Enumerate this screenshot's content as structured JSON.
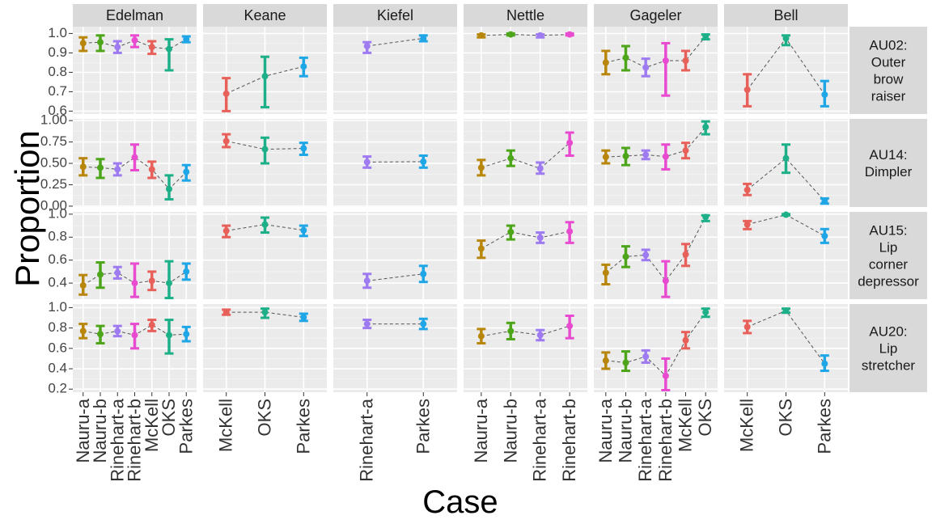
{
  "chart_data": {
    "type": "errorbar",
    "title": "",
    "xlabel": "Case",
    "ylabel": "Proportion",
    "columns": [
      {
        "name": "Edelman",
        "cases": [
          "Nauru-a",
          "Nauru-b",
          "Rinehart-a",
          "Rinehart-b",
          "McKell",
          "OKS",
          "Parkes"
        ]
      },
      {
        "name": "Keane",
        "cases": [
          "McKell",
          "OKS",
          "Parkes"
        ]
      },
      {
        "name": "Kiefel",
        "cases": [
          "Rinehart-a",
          "Parkes"
        ]
      },
      {
        "name": "Nettle",
        "cases": [
          "Nauru-a",
          "Nauru-b",
          "Rinehart-a",
          "Rinehart-b"
        ]
      },
      {
        "name": "Gageler",
        "cases": [
          "Nauru-a",
          "Nauru-b",
          "Rinehart-a",
          "Rinehart-b",
          "McKell",
          "OKS"
        ]
      },
      {
        "name": "Bell",
        "cases": [
          "McKell",
          "OKS",
          "Parkes"
        ]
      }
    ],
    "case_colors": {
      "Nauru-a": "#B8860B",
      "Nauru-b": "#4DA51A",
      "Rinehart-a": "#9E7BF0",
      "Rinehart-b": "#E84AD0",
      "McKell": "#E8605A",
      "OKS": "#1DB088",
      "Parkes": "#1EA6E6"
    },
    "rows": [
      {
        "label_lines": [
          "AU02:",
          "Outer",
          "brow",
          "raiser"
        ],
        "ylim": [
          0.585,
          1.035
        ],
        "yticks": [
          0.6,
          0.7,
          0.8,
          0.9,
          1.0
        ],
        "tick_labels": [
          "0.6",
          "0.7",
          "0.8",
          "0.9",
          "1.0"
        ],
        "panels": [
          [
            [
              0.95,
              0.91,
              0.98
            ],
            [
              0.955,
              0.91,
              0.99
            ],
            [
              0.93,
              0.9,
              0.96
            ],
            [
              0.965,
              0.93,
              0.99
            ],
            [
              0.93,
              0.895,
              0.96
            ],
            [
              0.92,
              0.81,
              0.97
            ],
            [
              0.97,
              0.955,
              0.985
            ]
          ],
          [
            [
              0.69,
              0.6,
              0.77
            ],
            [
              0.78,
              0.62,
              0.88
            ],
            [
              0.83,
              0.78,
              0.875
            ]
          ],
          [
            [
              0.935,
              0.9,
              0.955
            ],
            [
              0.975,
              0.96,
              0.99
            ]
          ],
          [
            [
              0.99,
              0.98,
              0.995
            ],
            [
              0.995,
              0.99,
              1.0
            ],
            [
              0.99,
              0.98,
              0.995
            ],
            [
              0.995,
              0.99,
              1.0
            ]
          ],
          [
            [
              0.85,
              0.79,
              0.91
            ],
            [
              0.875,
              0.81,
              0.935
            ],
            [
              0.825,
              0.78,
              0.87
            ],
            [
              0.86,
              0.68,
              0.95
            ],
            [
              0.86,
              0.81,
              0.91
            ],
            [
              0.985,
              0.97,
              0.995
            ]
          ],
          [
            [
              0.71,
              0.625,
              0.79
            ],
            [
              0.975,
              0.94,
              0.99
            ],
            [
              0.685,
              0.625,
              0.755
            ]
          ]
        ]
      },
      {
        "label_lines": [
          "AU14:",
          "Dimpler"
        ],
        "ylim": [
          -0.01,
          1.02
        ],
        "yticks": [
          0.0,
          0.25,
          0.5,
          0.75,
          1.0
        ],
        "tick_labels": [
          "0.00",
          "0.25",
          "0.50",
          "0.75",
          "1.00"
        ],
        "panels": [
          [
            [
              0.46,
              0.36,
              0.56
            ],
            [
              0.45,
              0.33,
              0.55
            ],
            [
              0.43,
              0.36,
              0.5
            ],
            [
              0.57,
              0.42,
              0.72
            ],
            [
              0.43,
              0.33,
              0.52
            ],
            [
              0.2,
              0.08,
              0.36
            ],
            [
              0.4,
              0.3,
              0.48
            ]
          ],
          [
            [
              0.76,
              0.69,
              0.84
            ],
            [
              0.665,
              0.5,
              0.8
            ],
            [
              0.675,
              0.6,
              0.74
            ]
          ],
          [
            [
              0.515,
              0.45,
              0.58
            ],
            [
              0.52,
              0.45,
              0.59
            ]
          ],
          [
            [
              0.45,
              0.36,
              0.54
            ],
            [
              0.56,
              0.47,
              0.65
            ],
            [
              0.44,
              0.38,
              0.51
            ],
            [
              0.74,
              0.59,
              0.86
            ]
          ],
          [
            [
              0.575,
              0.5,
              0.65
            ],
            [
              0.585,
              0.48,
              0.68
            ],
            [
              0.6,
              0.55,
              0.65
            ],
            [
              0.58,
              0.43,
              0.72
            ],
            [
              0.65,
              0.56,
              0.74
            ],
            [
              0.925,
              0.84,
              0.99
            ]
          ],
          [
            [
              0.19,
              0.13,
              0.26
            ],
            [
              0.56,
              0.39,
              0.72
            ],
            [
              0.06,
              0.03,
              0.09
            ]
          ]
        ]
      },
      {
        "label_lines": [
          "AU15:",
          "Lip",
          "corner",
          "depressor"
        ],
        "ylim": [
          0.26,
          1.02
        ],
        "yticks": [
          0.4,
          0.6,
          0.8,
          1.0
        ],
        "tick_labels": [
          "0.4",
          "0.6",
          "0.8",
          "1.0"
        ],
        "panels": [
          [
            [
              0.38,
              0.3,
              0.47
            ],
            [
              0.475,
              0.36,
              0.58
            ],
            [
              0.49,
              0.44,
              0.54
            ],
            [
              0.4,
              0.28,
              0.57
            ],
            [
              0.42,
              0.34,
              0.5
            ],
            [
              0.4,
              0.27,
              0.59
            ],
            [
              0.5,
              0.43,
              0.57
            ]
          ],
          [
            [
              0.855,
              0.8,
              0.9
            ],
            [
              0.91,
              0.84,
              0.97
            ],
            [
              0.86,
              0.81,
              0.9
            ]
          ],
          [
            [
              0.42,
              0.36,
              0.48
            ],
            [
              0.48,
              0.41,
              0.55
            ]
          ],
          [
            [
              0.7,
              0.62,
              0.77
            ],
            [
              0.845,
              0.78,
              0.9
            ],
            [
              0.795,
              0.75,
              0.84
            ],
            [
              0.85,
              0.75,
              0.93
            ]
          ],
          [
            [
              0.49,
              0.39,
              0.56
            ],
            [
              0.63,
              0.54,
              0.72
            ],
            [
              0.645,
              0.6,
              0.69
            ],
            [
              0.42,
              0.28,
              0.59
            ],
            [
              0.65,
              0.55,
              0.74
            ],
            [
              0.975,
              0.94,
              0.99
            ]
          ],
          [
            [
              0.91,
              0.87,
              0.94
            ],
            [
              0.995,
              0.99,
              1.0
            ],
            [
              0.81,
              0.75,
              0.87
            ]
          ]
        ]
      },
      {
        "label_lines": [
          "AU20:",
          "Lip",
          "stretcher"
        ],
        "ylim": [
          0.17,
          1.035
        ],
        "yticks": [
          0.2,
          0.4,
          0.6,
          0.8,
          1.0
        ],
        "tick_labels": [
          "0.2",
          "0.4",
          "0.6",
          "0.8",
          "1.0"
        ],
        "panels": [
          [
            [
              0.77,
              0.7,
              0.84
            ],
            [
              0.74,
              0.65,
              0.82
            ],
            [
              0.77,
              0.72,
              0.82
            ],
            [
              0.73,
              0.6,
              0.84
            ],
            [
              0.83,
              0.77,
              0.88
            ],
            [
              0.73,
              0.55,
              0.88
            ],
            [
              0.74,
              0.67,
              0.81
            ]
          ],
          [
            [
              0.955,
              0.93,
              0.98
            ],
            [
              0.955,
              0.9,
              0.99
            ],
            [
              0.905,
              0.87,
              0.94
            ]
          ],
          [
            [
              0.84,
              0.8,
              0.88
            ],
            [
              0.84,
              0.79,
              0.89
            ]
          ],
          [
            [
              0.72,
              0.65,
              0.79
            ],
            [
              0.77,
              0.69,
              0.85
            ],
            [
              0.73,
              0.68,
              0.78
            ],
            [
              0.82,
              0.7,
              0.92
            ]
          ],
          [
            [
              0.48,
              0.4,
              0.56
            ],
            [
              0.46,
              0.38,
              0.57
            ],
            [
              0.52,
              0.46,
              0.58
            ],
            [
              0.33,
              0.19,
              0.5
            ],
            [
              0.68,
              0.6,
              0.76
            ],
            [
              0.955,
              0.91,
              0.99
            ]
          ],
          [
            [
              0.81,
              0.75,
              0.87
            ],
            [
              0.97,
              0.95,
              0.99
            ],
            [
              0.45,
              0.38,
              0.53
            ]
          ]
        ]
      }
    ]
  }
}
